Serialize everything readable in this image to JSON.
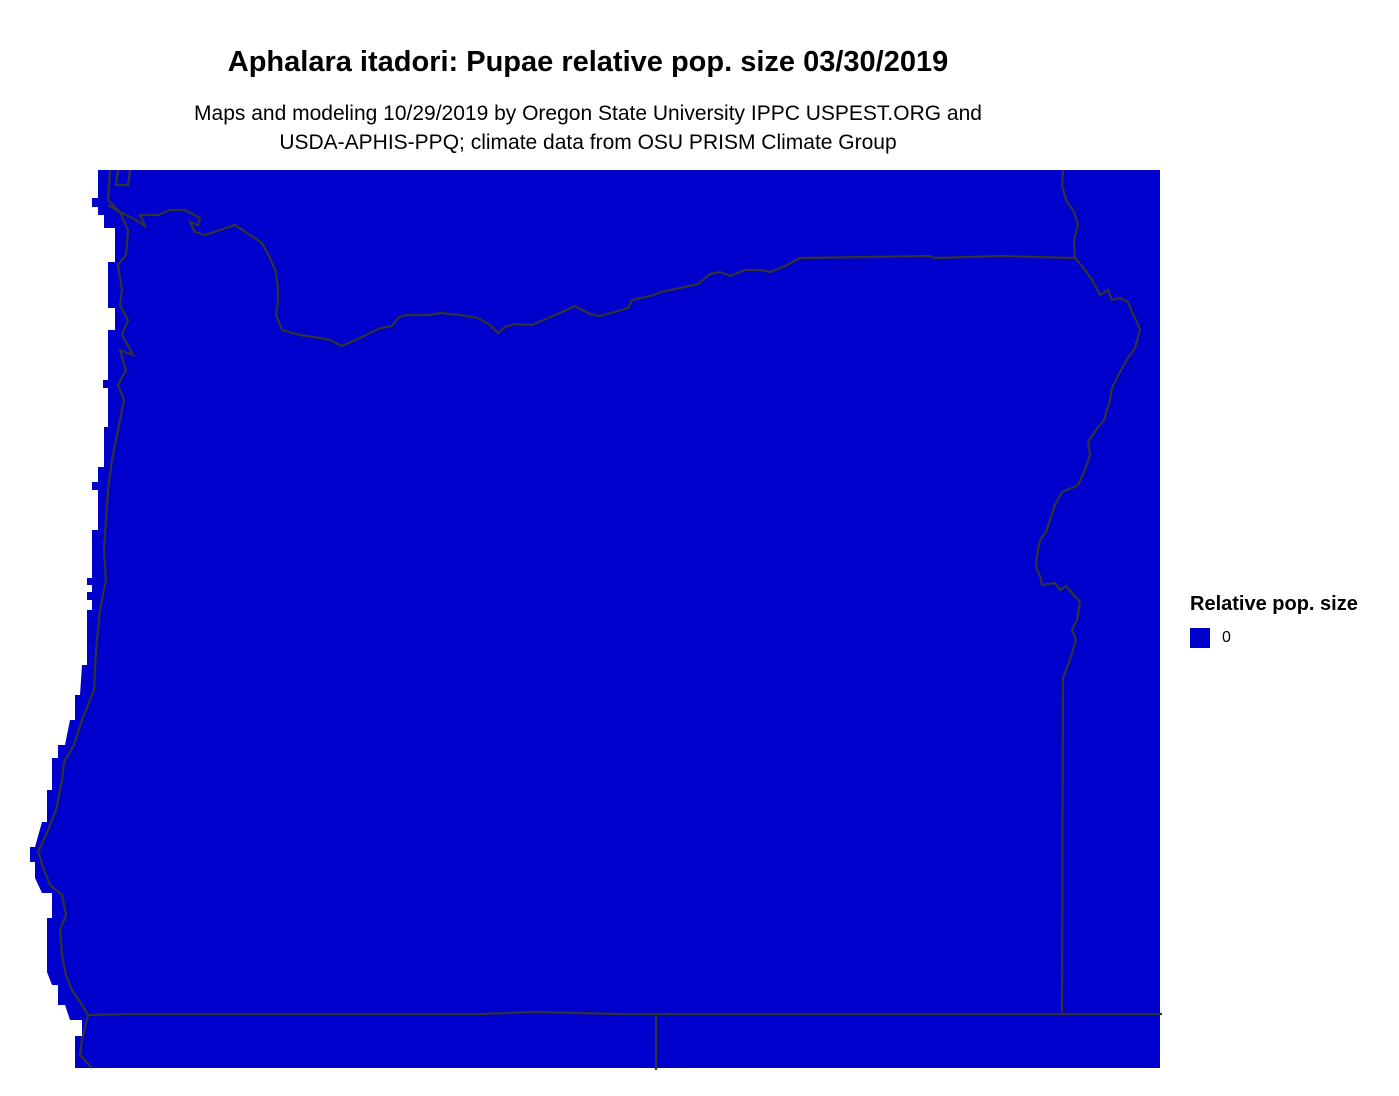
{
  "title": "Aphalara itadori: Pupae relative pop. size 03/30/2019",
  "subtitle_lines": [
    "Maps and modeling 10/29/2019 by Oregon State University IPPC USPEST.ORG and",
    "USDA-APHIS-PPQ; climate data from OSU PRISM Climate Group"
  ],
  "legend": {
    "title": "Relative pop. size",
    "items": [
      {
        "label": "0",
        "color": "#0000CD"
      }
    ]
  },
  "colors": {
    "fill": "#0000CD",
    "border": "#333333"
  }
}
